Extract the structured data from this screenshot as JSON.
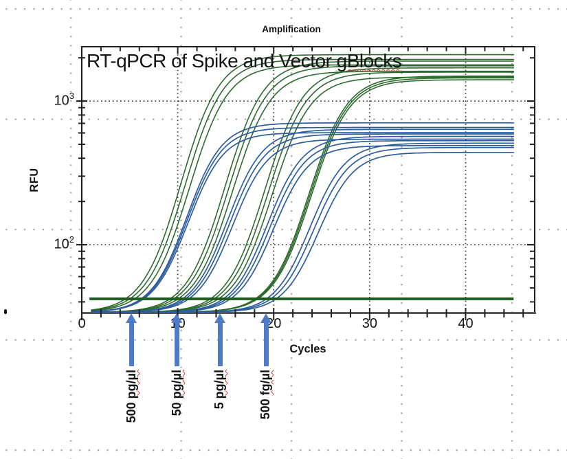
{
  "chart_data": {
    "type": "line",
    "title": "Amplification",
    "inner_title_prefix": "RT-qPCR of Spike and Vector ",
    "inner_title_flagged": "gBlocks",
    "xlabel": "Cycles",
    "ylabel": "RFU",
    "x_axis": {
      "min": 0,
      "max": 47.2,
      "major_ticks": [
        0,
        10,
        20,
        30,
        40
      ],
      "minor_tick_step": 2,
      "minor_tick_max": 46
    },
    "y_axis": {
      "scale": "log10",
      "min_rfu": 33.3,
      "max_rfu": 2390,
      "major_ticks": [
        {
          "value": 100,
          "base": "10",
          "exp": "2"
        },
        {
          "value": 1000,
          "base": "10",
          "exp": "3"
        }
      ]
    },
    "grid": {
      "x_gridline_cycles": [
        10,
        20,
        30,
        40
      ],
      "y_gridline_rfu": [
        100,
        1000
      ],
      "style": "dotted"
    },
    "threshold": {
      "rfu": 42,
      "cycle_start": 0.8,
      "cycle_end": 45,
      "color": "#1d5a1d"
    },
    "baseline_rfu": 33.8,
    "curve_cycle_range": [
      1,
      45
    ],
    "series": [
      {
        "name": "green-curves",
        "color": "#2d6a2d",
        "stroke_width": 1.6,
        "sigmoid_slope": 2.0,
        "clusters": [
          {
            "ct": 5.0,
            "plateau_rfu": 1950,
            "rep_ct_offsets": [
              -0.45,
              0,
              0.5
            ],
            "rep_plateau_log_offsets": [
              0.033,
              0,
              -0.038
            ]
          },
          {
            "ct": 9.6,
            "plateau_rfu": 1760,
            "rep_ct_offsets": [
              -0.4,
              0,
              0.45
            ],
            "rep_plateau_log_offsets": [
              0.033,
              0,
              -0.038
            ]
          },
          {
            "ct": 13.8,
            "plateau_rfu": 1590,
            "rep_ct_offsets": [
              -0.4,
              0,
              0.45
            ],
            "rep_plateau_log_offsets": [
              0.03,
              0,
              -0.035
            ]
          },
          {
            "ct": 18.2,
            "plateau_rfu": 1450,
            "rep_ct_offsets": [
              -0.13,
              0,
              0.14
            ],
            "rep_plateau_log_offsets": [
              0.013,
              0,
              -0.013
            ]
          }
        ]
      },
      {
        "name": "blue-curves",
        "color": "#2c5d9e",
        "stroke_width": 1.7,
        "sigmoid_slope": 1.85,
        "clusters": [
          {
            "ct": 6.3,
            "plateau_rfu": 655,
            "rep_ct_offsets": [
              -0.12,
              0,
              0.15
            ],
            "rep_plateau_log_offsets": [
              0.032,
              0,
              -0.036
            ]
          },
          {
            "ct": 10.8,
            "plateau_rfu": 590,
            "rep_ct_offsets": [
              -0.3,
              0,
              0.35
            ],
            "rep_plateau_log_offsets": [
              0.032,
              0,
              -0.036
            ]
          },
          {
            "ct": 15.1,
            "plateau_rfu": 530,
            "rep_ct_offsets": [
              -0.35,
              0,
              0.4
            ],
            "rep_plateau_log_offsets": [
              0.03,
              0,
              -0.034
            ]
          },
          {
            "ct": 19.7,
            "plateau_rfu": 475,
            "rep_ct_offsets": [
              -0.45,
              0,
              0.55
            ],
            "rep_plateau_log_offsets": [
              0.03,
              0,
              -0.034
            ]
          }
        ]
      }
    ],
    "annotations": [
      {
        "cycle": 5.2,
        "amount": "500",
        "unit": "pg/µl"
      },
      {
        "cycle": 9.95,
        "amount": "50",
        "unit": "pg/µl"
      },
      {
        "cycle": 14.4,
        "amount": "5",
        "unit": "pg/µl"
      },
      {
        "cycle": 19.2,
        "amount": "500",
        "unit": "fg/µl"
      }
    ],
    "annotation_arrow_color": "#4e7bc9"
  }
}
